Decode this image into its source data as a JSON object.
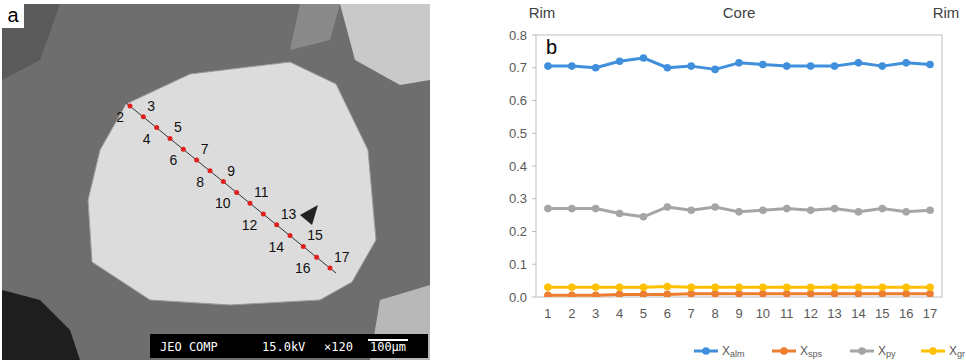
{
  "chart_data": {
    "type": "line",
    "panel_label": "b",
    "top_labels": [
      "Rim",
      "Core",
      "Rim"
    ],
    "categories": [
      "1",
      "2",
      "3",
      "4",
      "5",
      "6",
      "7",
      "8",
      "9",
      "10",
      "11",
      "12",
      "13",
      "14",
      "15",
      "16",
      "17"
    ],
    "series": [
      {
        "name": "Xalm",
        "color": "#3f8fdc",
        "marker": "circle",
        "values": [
          0.705,
          0.705,
          0.7,
          0.72,
          0.73,
          0.7,
          0.705,
          0.695,
          0.715,
          0.71,
          0.705,
          0.705,
          0.705,
          0.715,
          0.705,
          0.715,
          0.71
        ]
      },
      {
        "name": "Xsps",
        "color": "#ed7d31",
        "marker": "circle",
        "values": [
          0.005,
          0.005,
          0.005,
          0.008,
          0.008,
          0.008,
          0.01,
          0.01,
          0.01,
          0.01,
          0.01,
          0.01,
          0.01,
          0.01,
          0.01,
          0.01,
          0.01
        ]
      },
      {
        "name": "Xpy",
        "color": "#a5a5a5",
        "marker": "circle",
        "values": [
          0.27,
          0.27,
          0.27,
          0.255,
          0.245,
          0.275,
          0.265,
          0.275,
          0.26,
          0.265,
          0.27,
          0.265,
          0.27,
          0.26,
          0.27,
          0.26,
          0.265
        ]
      },
      {
        "name": "Xgr",
        "color": "#ffc000",
        "marker": "circle",
        "values": [
          0.03,
          0.03,
          0.03,
          0.03,
          0.03,
          0.032,
          0.03,
          0.03,
          0.03,
          0.03,
          0.03,
          0.03,
          0.03,
          0.03,
          0.03,
          0.03,
          0.03
        ]
      }
    ],
    "ylim": [
      0,
      0.8
    ],
    "yticks": [
      {
        "value": 0,
        "label": "0.0"
      },
      0.1,
      0.2,
      0.3,
      0.4,
      0.5,
      0.6,
      0.7,
      0.8
    ],
    "grid": false,
    "legend": "bottom"
  },
  "image_panel": {
    "label": "a",
    "points": [
      "2",
      "3",
      "4",
      "5",
      "6",
      "7",
      "8",
      "9",
      "10",
      "11",
      "12",
      "13",
      "14",
      "15",
      "16",
      "17"
    ],
    "footer": [
      "JEO COMP",
      "15.0kV",
      "×120",
      "100μm"
    ]
  }
}
